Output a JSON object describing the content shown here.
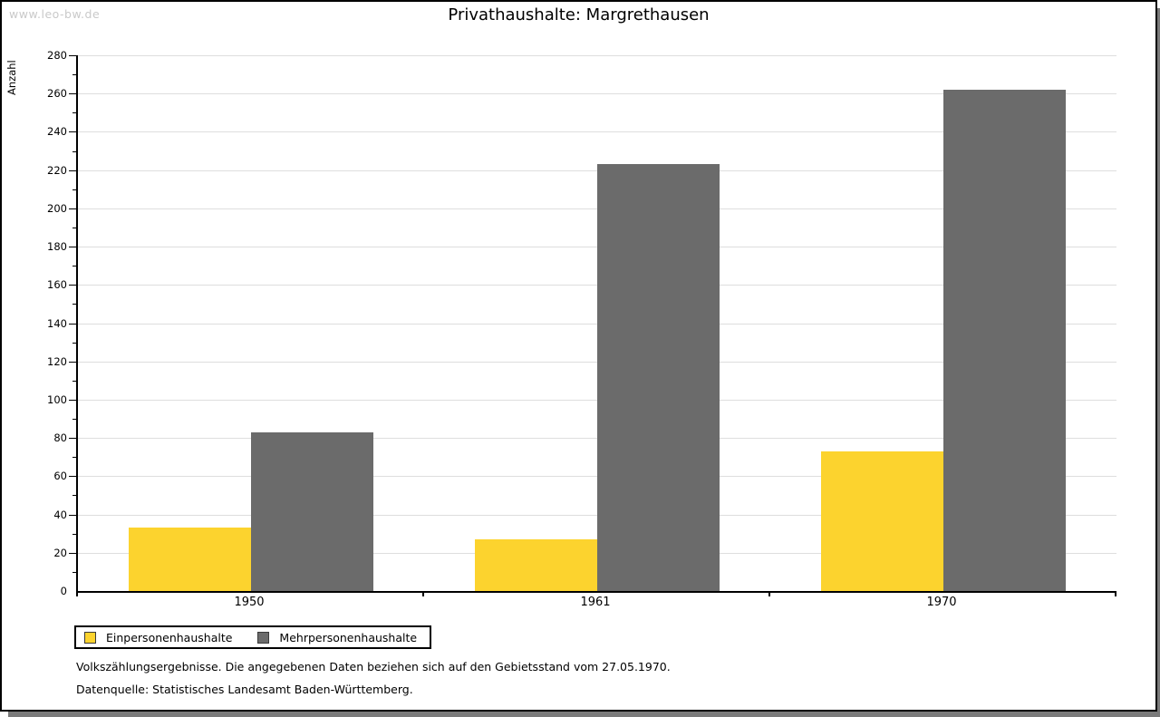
{
  "watermark": "www.leo-bw.de",
  "title": "Privathaushalte: Margrethausen",
  "chart_data": {
    "type": "bar",
    "title": "Privathaushalte: Margrethausen",
    "categories": [
      "1950",
      "1961",
      "1970"
    ],
    "series": [
      {
        "name": "Einpersonenhaushalte",
        "color": "#FCD32E",
        "values": [
          33,
          27,
          73
        ]
      },
      {
        "name": "Mehrpersonenhaushalte",
        "color": "#6B6B6B",
        "values": [
          83,
          223,
          262
        ]
      }
    ],
    "xlabel": "",
    "ylabel": "Anzahl",
    "ylim": [
      0,
      280
    ],
    "ytick_major_step": 20,
    "ytick_minor_step": 10,
    "grid": true,
    "legend_position": "bottom-left"
  },
  "footnotes": {
    "line1": "Volkszählungsergebnisse. Die angegebenen Daten beziehen sich auf den Gebietsstand vom 27.05.1970.",
    "line2": "Datenquelle: Statistisches Landesamt Baden-Württemberg."
  },
  "colors": {
    "series1": "#FCD32E",
    "series2": "#6B6B6B",
    "gridline": "#DEDEDE",
    "axis": "#000000",
    "watermark": "#C9C9C9",
    "shadow": "#7A7A7A",
    "background": "#FFFFFF"
  }
}
